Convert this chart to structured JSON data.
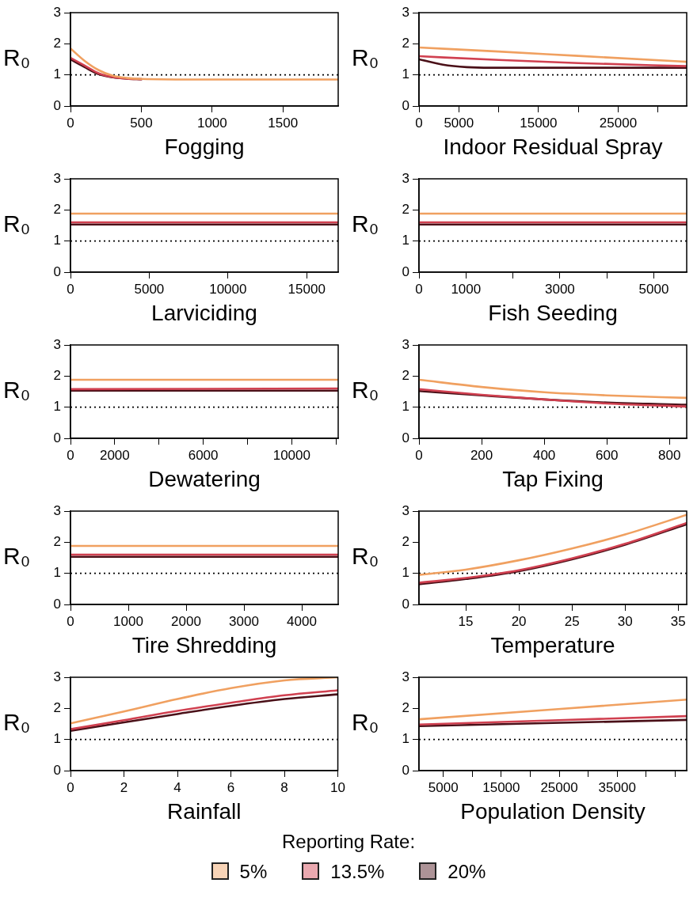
{
  "chart_data": [
    {
      "type": "line",
      "xlabel": "Fogging",
      "ylabel": "R₀",
      "xlim": [
        0,
        1890
      ],
      "xticks": [
        0,
        500,
        1000,
        1500
      ],
      "ylim": [
        0,
        3
      ],
      "yticks": [
        0,
        1,
        2,
        3
      ],
      "grid": false,
      "marker": "none",
      "line_style": "solid",
      "ref_lines": [
        {
          "axis": "y",
          "value": 1,
          "color": "#000000",
          "line_style": "dotted"
        }
      ],
      "series": [
        {
          "color": "#f0a060",
          "x": [
            0,
            100,
            200,
            300,
            400,
            500,
            1000,
            1890
          ],
          "values": [
            1.85,
            1.45,
            1.15,
            0.97,
            0.9,
            0.87,
            0.85,
            0.85
          ]
        },
        {
          "color": "#d04050",
          "x": [
            0,
            100,
            200,
            300,
            400,
            500
          ],
          "values": [
            1.55,
            1.3,
            1.05,
            0.93,
            0.88,
            0.86
          ]
        },
        {
          "color": "#4a1018",
          "x": [
            0,
            100,
            200,
            300,
            400,
            500
          ],
          "values": [
            1.5,
            1.25,
            1.02,
            0.92,
            0.88,
            0.86
          ]
        }
      ]
    },
    {
      "type": "line",
      "xlabel": "Indoor Residual Spray",
      "ylabel": "R₀",
      "xlim": [
        0,
        33600
      ],
      "xticks": [
        0,
        5000,
        {
          "value": 10000,
          "label": null
        },
        15000,
        {
          "value": 20000,
          "label": null
        },
        25000,
        {
          "value": 30000,
          "label": null
        }
      ],
      "ylim": [
        0,
        3
      ],
      "yticks": [
        0,
        1,
        2,
        3
      ],
      "grid": false,
      "marker": "none",
      "line_style": "solid",
      "ref_lines": [
        {
          "axis": "y",
          "value": 1,
          "color": "#000000",
          "line_style": "dotted"
        }
      ],
      "series": [
        {
          "color": "#f0a060",
          "x": [
            0,
            10000,
            20000,
            33600
          ],
          "values": [
            1.88,
            1.75,
            1.61,
            1.42
          ]
        },
        {
          "color": "#d04050",
          "x": [
            0,
            10000,
            20000,
            33600
          ],
          "values": [
            1.6,
            1.48,
            1.38,
            1.28
          ]
        },
        {
          "color": "#4a1018",
          "x": [
            0,
            3000,
            6000,
            9000,
            33600
          ],
          "values": [
            1.5,
            1.33,
            1.25,
            1.23,
            1.23
          ]
        }
      ]
    },
    {
      "type": "line",
      "xlabel": "Larviciding",
      "ylabel": "R₀",
      "xlim": [
        0,
        17000
      ],
      "xticks": [
        0,
        5000,
        10000,
        15000
      ],
      "ylim": [
        0,
        3
      ],
      "yticks": [
        0,
        1,
        2,
        3
      ],
      "grid": false,
      "marker": "none",
      "line_style": "solid",
      "ref_lines": [
        {
          "axis": "y",
          "value": 1,
          "color": "#000000",
          "line_style": "dotted"
        }
      ],
      "series": [
        {
          "color": "#f0a060",
          "x": [
            0,
            17000
          ],
          "values": [
            1.88,
            1.88
          ]
        },
        {
          "color": "#d04050",
          "x": [
            0,
            17000
          ],
          "values": [
            1.6,
            1.6
          ]
        },
        {
          "color": "#4a1018",
          "x": [
            0,
            17000
          ],
          "values": [
            1.53,
            1.53
          ]
        }
      ]
    },
    {
      "type": "line",
      "xlabel": "Fish Seeding",
      "ylabel": "R₀",
      "xlim": [
        0,
        5700
      ],
      "xticks": [
        0,
        1000,
        {
          "value": 2000,
          "label": null
        },
        3000,
        {
          "value": 4000,
          "label": null
        },
        5000
      ],
      "ylim": [
        0,
        3
      ],
      "yticks": [
        0,
        1,
        2,
        3
      ],
      "grid": false,
      "marker": "none",
      "line_style": "solid",
      "ref_lines": [
        {
          "axis": "y",
          "value": 1,
          "color": "#000000",
          "line_style": "dotted"
        }
      ],
      "series": [
        {
          "color": "#f0a060",
          "x": [
            0,
            5700
          ],
          "values": [
            1.88,
            1.88
          ]
        },
        {
          "color": "#d04050",
          "x": [
            0,
            5700
          ],
          "values": [
            1.6,
            1.6
          ]
        },
        {
          "color": "#4a1018",
          "x": [
            0,
            5700
          ],
          "values": [
            1.53,
            1.53
          ]
        }
      ]
    },
    {
      "type": "line",
      "xlabel": "Dewatering",
      "ylabel": "R₀",
      "xlim": [
        0,
        12100
      ],
      "xticks": [
        0,
        2000,
        {
          "value": 4000,
          "label": null
        },
        6000,
        {
          "value": 8000,
          "label": null
        },
        10000,
        {
          "value": 12000,
          "label": null
        }
      ],
      "ylim": [
        0,
        3
      ],
      "yticks": [
        0,
        1,
        2,
        3
      ],
      "grid": false,
      "marker": "none",
      "line_style": "solid",
      "ref_lines": [
        {
          "axis": "y",
          "value": 1,
          "color": "#000000",
          "line_style": "dotted"
        }
      ],
      "series": [
        {
          "color": "#f0a060",
          "x": [
            0,
            12100
          ],
          "values": [
            1.88,
            1.88
          ]
        },
        {
          "color": "#d04050",
          "x": [
            0,
            12100
          ],
          "values": [
            1.58,
            1.6
          ]
        },
        {
          "color": "#4a1018",
          "x": [
            0,
            12100
          ],
          "values": [
            1.53,
            1.53
          ]
        }
      ]
    },
    {
      "type": "line",
      "xlabel": "Tap Fixing",
      "ylabel": "R₀",
      "xlim": [
        0,
        855
      ],
      "xticks": [
        0,
        200,
        400,
        600,
        800
      ],
      "ylim": [
        0,
        3
      ],
      "yticks": [
        0,
        1,
        2,
        3
      ],
      "grid": false,
      "marker": "none",
      "line_style": "solid",
      "ref_lines": [
        {
          "axis": "y",
          "value": 1,
          "color": "#000000",
          "line_style": "dotted"
        }
      ],
      "series": [
        {
          "color": "#f0a060",
          "x": [
            0,
            200,
            400,
            600,
            855
          ],
          "values": [
            1.88,
            1.65,
            1.48,
            1.38,
            1.3
          ]
        },
        {
          "color": "#d04050",
          "x": [
            0,
            200,
            400,
            600,
            855
          ],
          "values": [
            1.58,
            1.4,
            1.25,
            1.12,
            1.02
          ]
        },
        {
          "color": "#4a1018",
          "x": [
            0,
            200,
            400,
            600,
            855
          ],
          "values": [
            1.52,
            1.38,
            1.25,
            1.15,
            1.08
          ]
        }
      ]
    },
    {
      "type": "line",
      "xlabel": "Tire Shredding",
      "ylabel": "R₀",
      "xlim": [
        0,
        4630
      ],
      "xticks": [
        0,
        1000,
        2000,
        3000,
        4000
      ],
      "ylim": [
        0,
        3
      ],
      "yticks": [
        0,
        1,
        2,
        3
      ],
      "grid": false,
      "marker": "none",
      "line_style": "solid",
      "ref_lines": [
        {
          "axis": "y",
          "value": 1,
          "color": "#000000",
          "line_style": "dotted"
        }
      ],
      "series": [
        {
          "color": "#f0a060",
          "x": [
            0,
            4630
          ],
          "values": [
            1.88,
            1.88
          ]
        },
        {
          "color": "#d04050",
          "x": [
            0,
            4630
          ],
          "values": [
            1.6,
            1.6
          ]
        },
        {
          "color": "#4a1018",
          "x": [
            0,
            4630
          ],
          "values": [
            1.53,
            1.53
          ]
        }
      ]
    },
    {
      "type": "line",
      "xlabel": "Temperature",
      "ylabel": "R₀",
      "xlim": [
        10.6,
        35.8
      ],
      "xticks": [
        15,
        20,
        25,
        30,
        35
      ],
      "ylim": [
        0,
        3
      ],
      "yticks": [
        0,
        1,
        2,
        3
      ],
      "grid": false,
      "marker": "none",
      "line_style": "solid",
      "ref_lines": [
        {
          "axis": "y",
          "value": 1,
          "color": "#000000",
          "line_style": "dotted"
        }
      ],
      "series": [
        {
          "color": "#f0a060",
          "x": [
            10.6,
            15,
            20,
            25,
            30,
            35.8
          ],
          "values": [
            0.95,
            1.12,
            1.42,
            1.8,
            2.25,
            2.88
          ]
        },
        {
          "color": "#d04050",
          "x": [
            10.6,
            15,
            20,
            25,
            30,
            35.8
          ],
          "values": [
            0.7,
            0.85,
            1.1,
            1.48,
            1.95,
            2.62
          ]
        },
        {
          "color": "#4a1018",
          "x": [
            10.6,
            15,
            20,
            25,
            30,
            35.8
          ],
          "values": [
            0.65,
            0.82,
            1.07,
            1.45,
            1.92,
            2.58
          ]
        }
      ]
    },
    {
      "type": "line",
      "xlabel": "Rainfall",
      "ylabel": "R₀",
      "xlim": [
        0,
        10
      ],
      "xticks": [
        0,
        2,
        4,
        6,
        8,
        10
      ],
      "ylim": [
        0,
        3
      ],
      "yticks": [
        0,
        1,
        2,
        3
      ],
      "grid": false,
      "marker": "none",
      "line_style": "solid",
      "ref_lines": [
        {
          "axis": "y",
          "value": 1,
          "color": "#000000",
          "line_style": "dotted"
        }
      ],
      "series": [
        {
          "color": "#f0a060",
          "x": [
            0,
            2,
            4,
            6,
            8,
            10
          ],
          "values": [
            1.52,
            1.9,
            2.3,
            2.65,
            2.9,
            3.0
          ]
        },
        {
          "color": "#d04050",
          "x": [
            0,
            2,
            4,
            6,
            8,
            10
          ],
          "values": [
            1.33,
            1.62,
            1.92,
            2.18,
            2.42,
            2.58
          ]
        },
        {
          "color": "#4a1018",
          "x": [
            0,
            2,
            4,
            6,
            8,
            10
          ],
          "values": [
            1.28,
            1.55,
            1.82,
            2.08,
            2.3,
            2.45
          ]
        }
      ]
    },
    {
      "type": "line",
      "xlabel": "Population Density",
      "ylabel": "R₀",
      "xlim": [
        800,
        47000
      ],
      "xticks": [
        5000,
        {
          "value": 10000,
          "label": null
        },
        15000,
        {
          "value": 20000,
          "label": null
        },
        25000,
        {
          "value": 30000,
          "label": null
        },
        35000,
        {
          "value": 40000,
          "label": null
        },
        {
          "value": 45000,
          "label": null
        }
      ],
      "ylim": [
        0,
        3
      ],
      "yticks": [
        0,
        1,
        2,
        3
      ],
      "grid": false,
      "marker": "none",
      "line_style": "solid",
      "legend": "bottom",
      "legend_title": "Reporting Rate:",
      "ref_lines": [
        {
          "axis": "y",
          "value": 1,
          "color": "#000000",
          "line_style": "dotted"
        }
      ],
      "series": [
        {
          "name": "5%",
          "color": "#f0a060",
          "x": [
            800,
            47000
          ],
          "values": [
            1.65,
            2.28
          ]
        },
        {
          "name": "13.5%",
          "color": "#d04050",
          "x": [
            800,
            47000
          ],
          "values": [
            1.48,
            1.75
          ]
        },
        {
          "name": "20%",
          "color": "#4a1018",
          "x": [
            800,
            47000
          ],
          "values": [
            1.43,
            1.63
          ]
        }
      ]
    }
  ]
}
